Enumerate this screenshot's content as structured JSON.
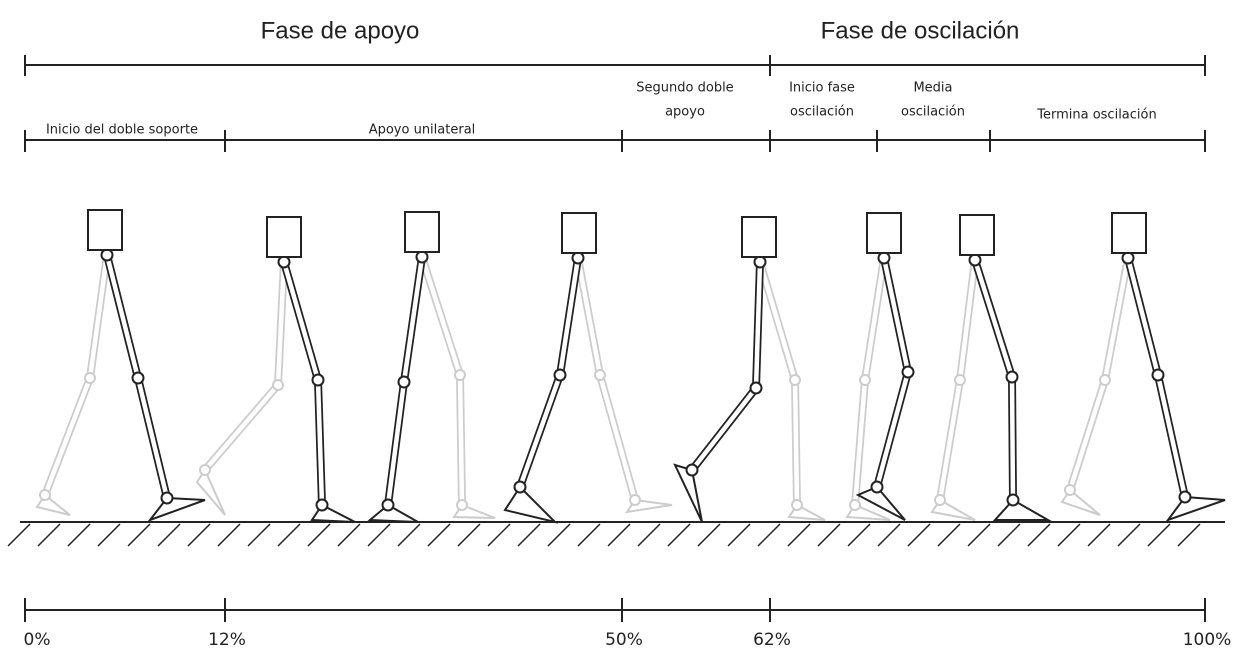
{
  "phases": [
    "Fase de  apoyo",
    "Fase de oscilación"
  ],
  "subphases": [
    {
      "lines": [
        "Inicio del doble soporte"
      ]
    },
    {
      "lines": [
        "Apoyo unilateral"
      ]
    },
    {
      "lines": [
        "Segundo doble",
        "apoyo"
      ]
    },
    {
      "lines": [
        "Inicio fase",
        "oscilación"
      ]
    },
    {
      "lines": [
        "Media",
        "oscilación"
      ]
    },
    {
      "lines": [
        "Termina oscilación"
      ]
    }
  ],
  "percentages": [
    "0%",
    "12%",
    "50%",
    "62%",
    "100%"
  ]
}
